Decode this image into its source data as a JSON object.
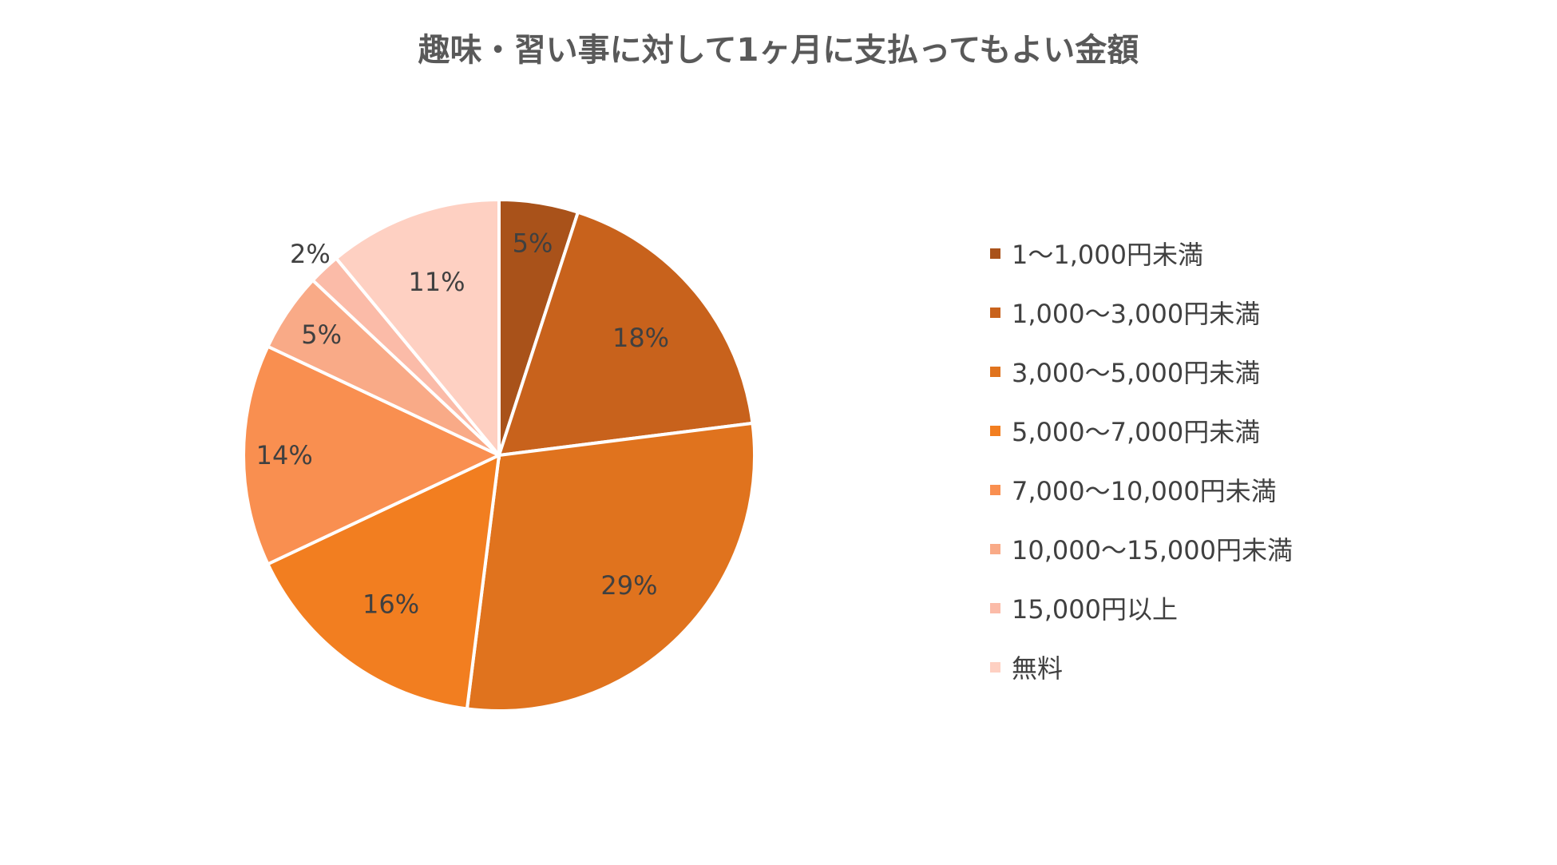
{
  "chart_data": {
    "type": "pie",
    "title": "趣味・習い事に対して1ヶ月に支払ってもよい金額",
    "categories": [
      "1〜1,000円未満",
      "1,000〜3,000円未満",
      "3,000〜5,000円未満",
      "5,000〜7,000円未満",
      "7,000〜10,000円未満",
      "10,000〜15,000円未満",
      "15,000円以上",
      "無料"
    ],
    "values": [
      5,
      18,
      29,
      16,
      14,
      5,
      2,
      11
    ],
    "labels": [
      "5%",
      "18%",
      "29%",
      "16%",
      "14%",
      "5%",
      "2%",
      "11%"
    ],
    "colors": [
      "#A9521A",
      "#C8621C",
      "#E0731E",
      "#F27E20",
      "#F98F50",
      "#F9AA87",
      "#FBBBA8",
      "#FED0C2"
    ],
    "legend_position": "right"
  }
}
